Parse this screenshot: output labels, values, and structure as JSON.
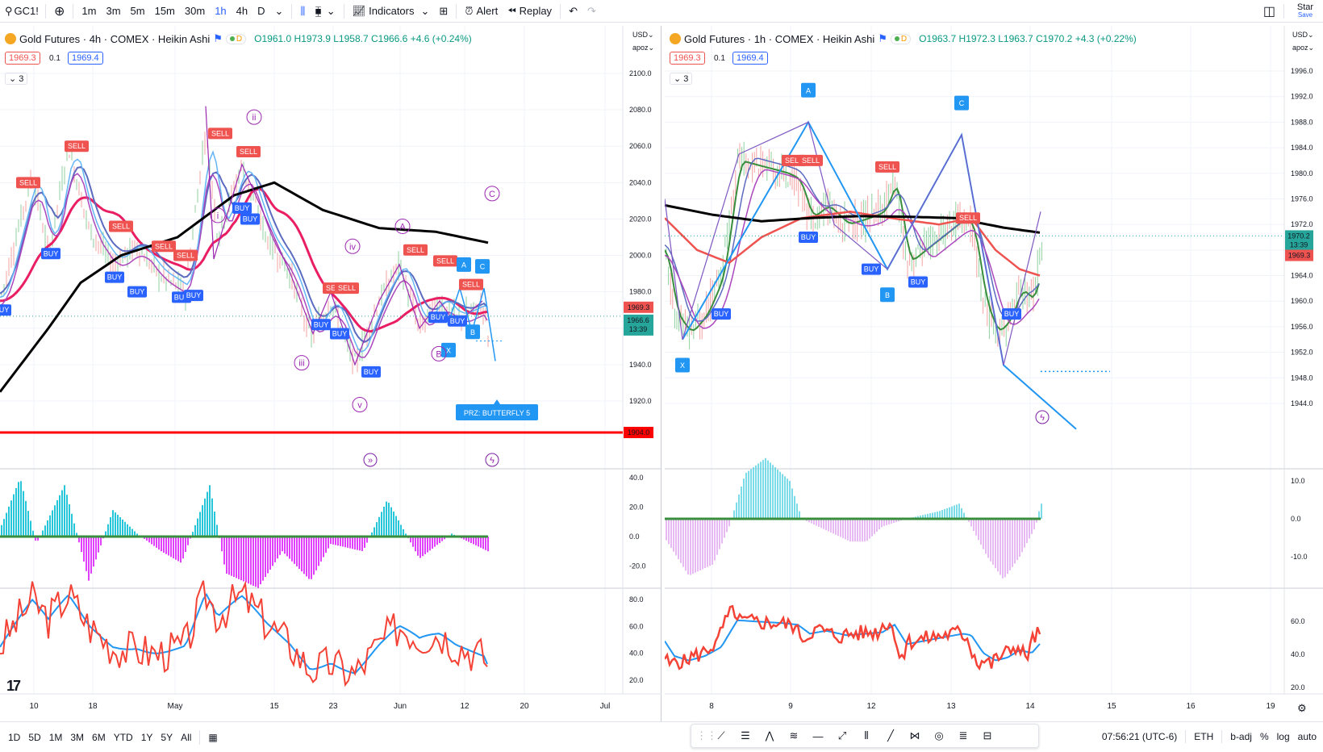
{
  "toolbar": {
    "symbol": "GC1!",
    "intervals": [
      "1m",
      "3m",
      "5m",
      "15m",
      "30m",
      "1h",
      "4h",
      "D"
    ],
    "active_interval": "1h",
    "indicators_label": "Indicators",
    "alert_label": "Alert",
    "replay_label": "Replay",
    "star_label": "Star",
    "save_label": "Save"
  },
  "left_chart": {
    "title": "Gold Futures · 4h · COMEX · Heikin Ashi",
    "o": "O1961.0",
    "h": "H1973.9",
    "l": "L1958.7",
    "c": "C1966.6",
    "chg": "+4.6 (+0.24%)",
    "bid": "1969.3",
    "spread": "0.1",
    "ask": "1969.4",
    "collapse": "3",
    "currency": "USD",
    "scale_mode": "apoz",
    "price_ticks": [
      "2100.0",
      "2080.0",
      "2060.0",
      "2040.0",
      "2020.0",
      "2000.0",
      "1980.0",
      "1960.0",
      "1940.0",
      "1920.0"
    ],
    "red_line_label": "1904.0",
    "last_bid": "1969.3",
    "last_price": "1966.6",
    "countdown": "13:39",
    "x_ticks": [
      "10",
      "18",
      "May",
      "15",
      "23",
      "Jun",
      "12",
      "20",
      "Jul"
    ],
    "osc1_ticks": [
      "40.0",
      "20.0",
      "0.0",
      "-20.0"
    ],
    "osc2_ticks": [
      "80.0",
      "60.0",
      "40.0",
      "20.0"
    ],
    "prz_label": "PRZ: BUTTERFLY 5",
    "wave_labels": [
      "i",
      "ii",
      "iii",
      "iv",
      "v",
      "A",
      "B",
      "C"
    ],
    "pattern_labels": [
      "A",
      "B",
      "C",
      "X"
    ],
    "sell_label": "SELL",
    "buy_label": "BUY"
  },
  "right_chart": {
    "title": "Gold Futures · 1h · COMEX · Heikin Ashi",
    "o": "O1963.7",
    "h": "H1972.3",
    "l": "L1963.7",
    "c": "C1970.2",
    "chg": "+4.3 (+0.22%)",
    "bid": "1969.3",
    "spread": "0.1",
    "ask": "1969.4",
    "collapse": "3",
    "currency": "USD",
    "scale_mode": "apoz",
    "price_ticks": [
      "1996.0",
      "1992.0",
      "1988.0",
      "1984.0",
      "1980.0",
      "1976.0",
      "1972.0",
      "1968.0",
      "1964.0",
      "1960.0",
      "1956.0",
      "1952.0",
      "1948.0",
      "1944.0"
    ],
    "last_price": "1970.2",
    "countdown": "13:39",
    "last_bid": "1969.3",
    "x_ticks": [
      "8",
      "9",
      "12",
      "13",
      "14",
      "15",
      "16",
      "19"
    ],
    "osc1_ticks": [
      "10.0",
      "0.0",
      "-10.0"
    ],
    "osc2_ticks": [
      "60.0",
      "40.0",
      "20.0"
    ],
    "pattern_labels": [
      "A",
      "B",
      "C",
      "X"
    ],
    "sell_label": "SELL",
    "buy_label": "BUY"
  },
  "bottom": {
    "ranges": [
      "1D",
      "5D",
      "1M",
      "3M",
      "6M",
      "YTD",
      "1Y",
      "5Y",
      "All"
    ],
    "time": "07:56:21 (UTC-6)",
    "session": "ETH",
    "adj": "b-adj",
    "pct": "%",
    "log": "log",
    "auto": "auto"
  },
  "colors": {
    "sell": "#ef5350",
    "buy": "#2962ff",
    "pattern": "#2196f3",
    "ema": "#e91e63",
    "sma": "#000000",
    "wave": "#9c27b0",
    "up": "#26a69a",
    "down": "#ef5350"
  }
}
